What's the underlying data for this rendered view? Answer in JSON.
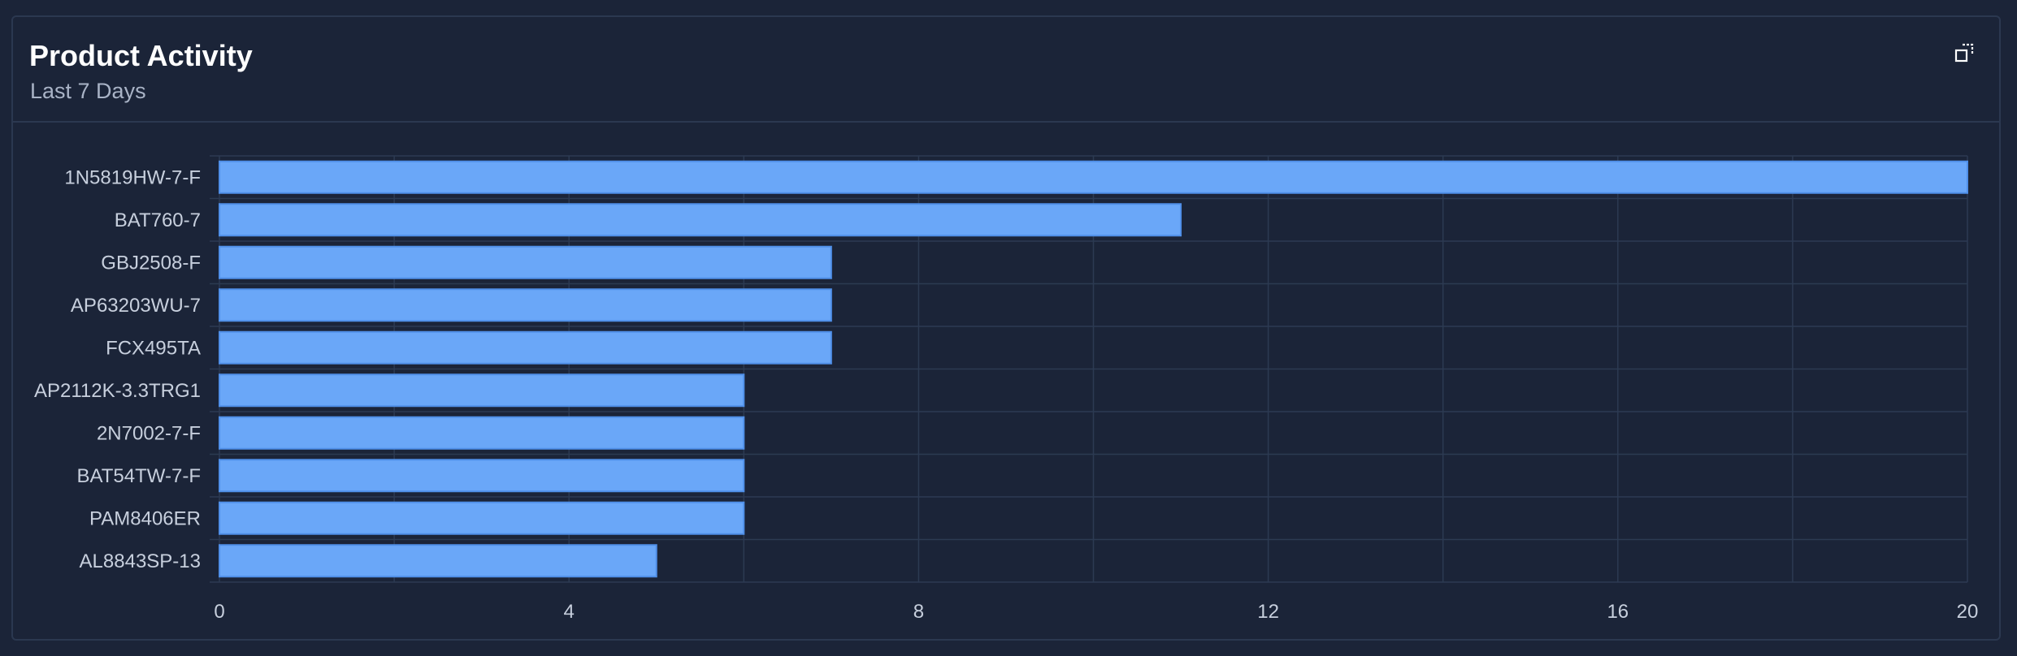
{
  "card": {
    "title": "Product Activity",
    "subtitle": "Last 7 Days",
    "expand_icon": "expand-icon"
  },
  "colors": {
    "background": "#1b2438",
    "bar_fill": "#6aa7f8",
    "bar_stroke": "#4f8fe8",
    "grid": "#2c3a52",
    "axis_text": "#c7cfdd",
    "label_text": "#c7cfdd"
  },
  "chart_data": {
    "type": "bar",
    "orientation": "horizontal",
    "categories": [
      "1N5819HW-7-F",
      "BAT760-7",
      "GBJ2508-F",
      "AP63203WU-7",
      "FCX495TA",
      "AP2112K-3.3TRG1",
      "2N7002-7-F",
      "BAT54TW-7-F",
      "PAM8406ER",
      "AL8843SP-13"
    ],
    "values": [
      20,
      11,
      7,
      7,
      7,
      6,
      6,
      6,
      6,
      5
    ],
    "xlim": [
      0,
      20
    ],
    "xticks": [
      0,
      4,
      8,
      12,
      16,
      20
    ],
    "xlabel": "",
    "ylabel": "",
    "grid": true,
    "legend": "none"
  }
}
